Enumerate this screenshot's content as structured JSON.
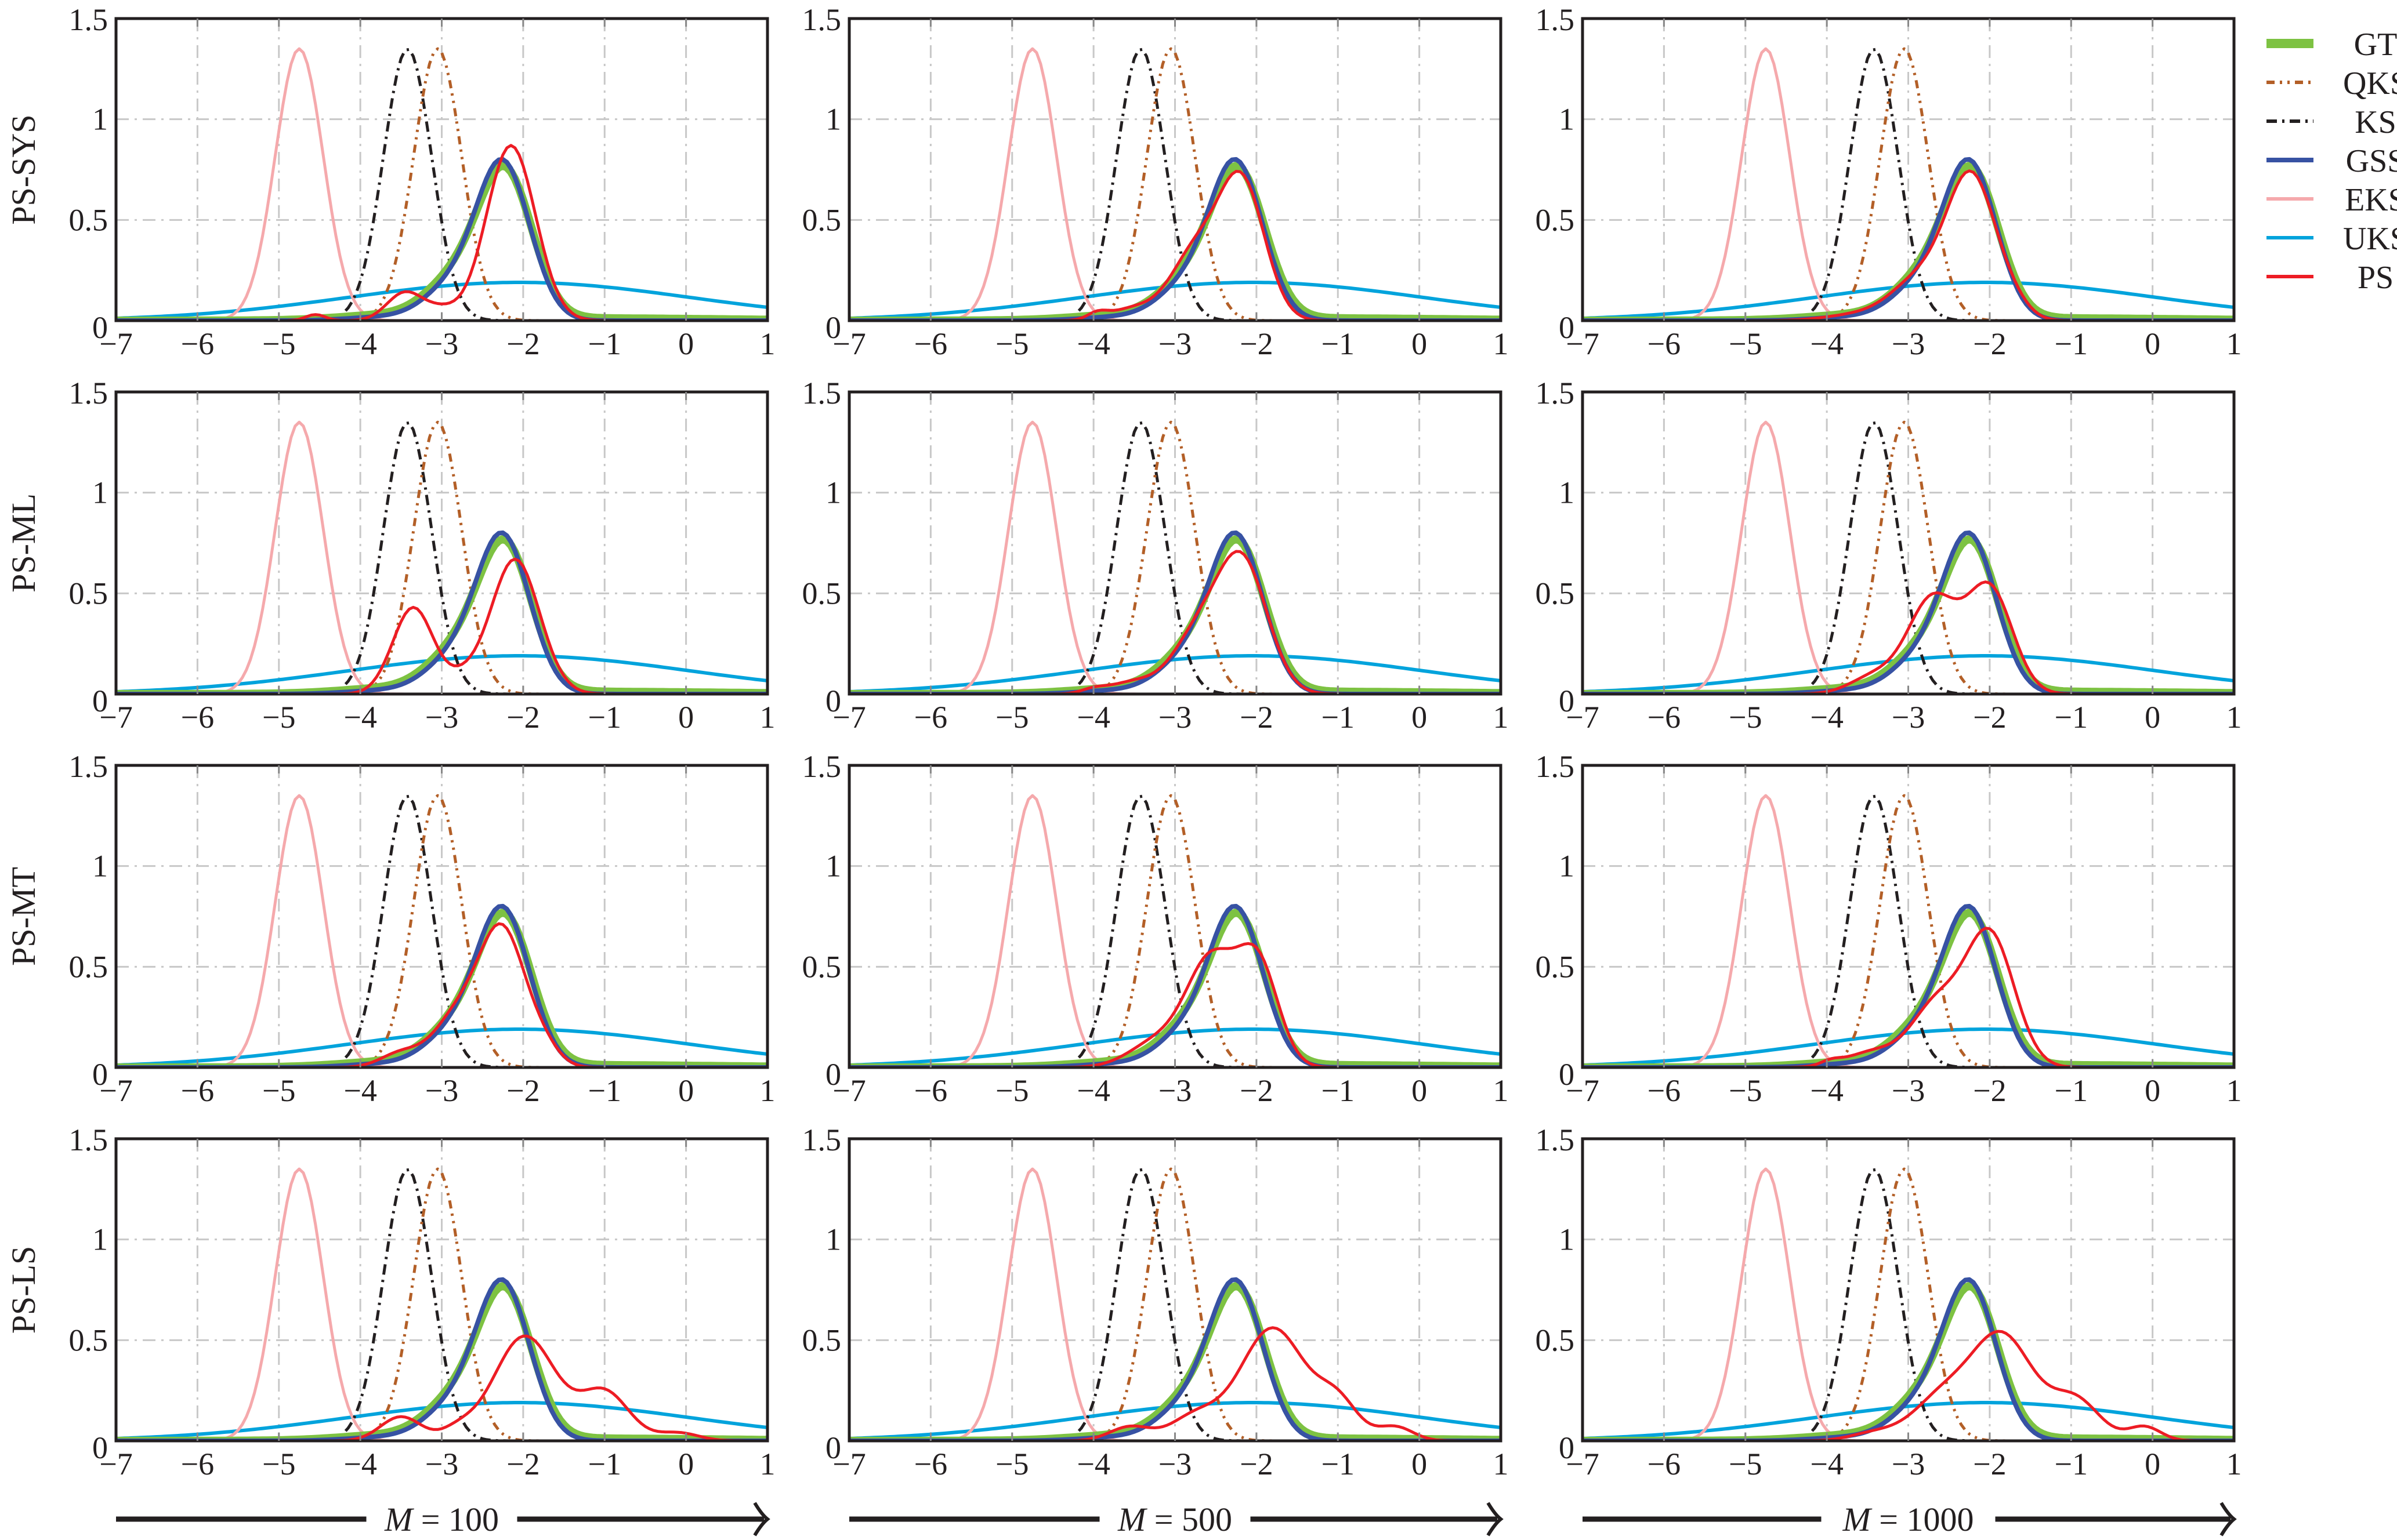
{
  "figure": {
    "row_labels": [
      "PS-SYS",
      "PS-ML",
      "PS-MT",
      "PS-LS"
    ],
    "column_labels": [
      "M = 100",
      "M = 500",
      "M = 1000"
    ],
    "column_label_parts": [
      {
        "var": "M",
        "eq": " = ",
        "val": "100"
      },
      {
        "var": "M",
        "eq": " = ",
        "val": "500"
      },
      {
        "var": "M",
        "eq": " = ",
        "val": "1000"
      }
    ],
    "x_ticks": [
      "−7",
      "−6",
      "−5",
      "−4",
      "−3",
      "−2",
      "−1",
      "0",
      "1"
    ],
    "y_ticks": [
      "0",
      "0.5",
      "1",
      "1.5"
    ]
  },
  "legend": {
    "items": [
      {
        "label": "GT",
        "color": "#7dc242",
        "style": "solid-thick"
      },
      {
        "label": "QKS",
        "color": "#b35f27",
        "style": "dash-dot-dot"
      },
      {
        "label": "KS",
        "color": "#231f20",
        "style": "dash-dot"
      },
      {
        "label": "GSS",
        "color": "#3752a3",
        "style": "solid"
      },
      {
        "label": "EKS",
        "color": "#f5a9ac",
        "style": "solid"
      },
      {
        "label": "UKS",
        "color": "#00a3dc",
        "style": "solid"
      },
      {
        "label": "PS",
        "color": "#ed1c24",
        "style": "solid"
      }
    ]
  },
  "chart_data": {
    "type": "line",
    "title": "",
    "layout": "4x3 grid of density plots; rows = PS variants, columns = particle counts M",
    "xlabel": "",
    "ylabel": "",
    "xlim": [
      -7,
      1
    ],
    "ylim": [
      0,
      1.5
    ],
    "grid": true,
    "legend_position": "right, outside top",
    "x_sample": {
      "start": -7,
      "stop": 1,
      "step": 0.05
    },
    "reference_series": [
      {
        "name": "GT",
        "color": "#7dc242",
        "peak_x": -2.25,
        "peak_y": 0.8,
        "components": [
          {
            "mu": -2.22,
            "sigma": 0.33,
            "a": 0.72
          },
          {
            "mu": -2.85,
            "sigma": 0.35,
            "a": 0.17
          },
          {
            "mu": -3.6,
            "sigma": 0.6,
            "a": 0.025
          },
          {
            "mu": -1.4,
            "sigma": 1.8,
            "a": 0.012
          }
        ]
      },
      {
        "name": "GSS",
        "color": "#3752a3",
        "peak_x": -2.27,
        "peak_y": 0.84,
        "components": [
          {
            "mu": -2.25,
            "sigma": 0.33,
            "a": 0.78
          },
          {
            "mu": -2.9,
            "sigma": 0.33,
            "a": 0.14
          },
          {
            "mu": -3.6,
            "sigma": 0.5,
            "a": 0.02
          }
        ]
      },
      {
        "name": "QKS",
        "color": "#b35f27",
        "peak_x": -3.05,
        "peak_y": 1.35,
        "components": [
          {
            "mu": -3.05,
            "sigma": 0.295,
            "a": 1.35
          }
        ]
      },
      {
        "name": "KS",
        "color": "#231f20",
        "peak_x": -3.42,
        "peak_y": 1.35,
        "components": [
          {
            "mu": -3.42,
            "sigma": 0.295,
            "a": 1.35
          }
        ]
      },
      {
        "name": "EKS",
        "color": "#f5a9ac",
        "peak_x": -4.75,
        "peak_y": 1.35,
        "components": [
          {
            "mu": -4.75,
            "sigma": 0.295,
            "a": 1.35
          }
        ]
      },
      {
        "name": "UKS",
        "color": "#00a3dc",
        "peak_x": -2.05,
        "peak_y": 0.19,
        "components": [
          {
            "mu": -2.05,
            "sigma": 2.1,
            "a": 0.19
          }
        ]
      }
    ],
    "ps_series": [
      {
        "row": "PS-SYS",
        "M": 100,
        "peak_x": -2.15,
        "peak_y": 0.88,
        "components": [
          {
            "mu": -2.15,
            "sigma": 0.3,
            "a": 0.87
          },
          {
            "mu": -3.45,
            "sigma": 0.22,
            "a": 0.14
          },
          {
            "mu": -3.0,
            "sigma": 0.2,
            "a": 0.05
          },
          {
            "mu": -4.55,
            "sigma": 0.12,
            "a": 0.03
          }
        ]
      },
      {
        "row": "PS-SYS",
        "M": 500,
        "peak_x": -2.2,
        "peak_y": 0.8,
        "components": [
          {
            "mu": -2.18,
            "sigma": 0.28,
            "a": 0.68
          },
          {
            "mu": -2.75,
            "sigma": 0.3,
            "a": 0.33
          },
          {
            "mu": -3.5,
            "sigma": 0.3,
            "a": 0.06
          },
          {
            "mu": -3.95,
            "sigma": 0.12,
            "a": 0.03
          }
        ]
      },
      {
        "row": "PS-SYS",
        "M": 1000,
        "peak_x": -2.25,
        "peak_y": 0.79,
        "components": [
          {
            "mu": -2.22,
            "sigma": 0.3,
            "a": 0.7
          },
          {
            "mu": -2.85,
            "sigma": 0.35,
            "a": 0.2
          },
          {
            "mu": -3.6,
            "sigma": 0.4,
            "a": 0.03
          },
          {
            "mu": -1.7,
            "sigma": 0.2,
            "a": 0.05
          }
        ]
      },
      {
        "row": "PS-ML",
        "M": 100,
        "peak_x": -2.1,
        "peak_y": 0.68,
        "components": [
          {
            "mu": -2.1,
            "sigma": 0.3,
            "a": 0.67
          },
          {
            "mu": -3.35,
            "sigma": 0.25,
            "a": 0.43
          },
          {
            "mu": -2.75,
            "sigma": 0.2,
            "a": 0.06
          }
        ]
      },
      {
        "row": "PS-ML",
        "M": 500,
        "peak_x": -2.2,
        "peak_y": 0.78,
        "components": [
          {
            "mu": -2.18,
            "sigma": 0.31,
            "a": 0.66
          },
          {
            "mu": -2.75,
            "sigma": 0.3,
            "a": 0.26
          },
          {
            "mu": -3.5,
            "sigma": 0.3,
            "a": 0.06
          },
          {
            "mu": -4.0,
            "sigma": 0.15,
            "a": 0.02
          }
        ]
      },
      {
        "row": "PS-ML",
        "M": 1000,
        "peak_x": -2.05,
        "peak_y": 0.66,
        "components": [
          {
            "mu": -2.0,
            "sigma": 0.28,
            "a": 0.52
          },
          {
            "mu": -2.7,
            "sigma": 0.3,
            "a": 0.47
          },
          {
            "mu": -3.4,
            "sigma": 0.3,
            "a": 0.09
          }
        ]
      },
      {
        "row": "PS-MT",
        "M": 100,
        "peak_x": -2.27,
        "peak_y": 0.77,
        "components": [
          {
            "mu": -2.25,
            "sigma": 0.28,
            "a": 0.66
          },
          {
            "mu": -2.8,
            "sigma": 0.3,
            "a": 0.25
          },
          {
            "mu": -1.75,
            "sigma": 0.2,
            "a": 0.08
          },
          {
            "mu": -3.5,
            "sigma": 0.25,
            "a": 0.07
          }
        ]
      },
      {
        "row": "PS-MT",
        "M": 500,
        "peak_x": -2.0,
        "peak_y": 0.63,
        "components": [
          {
            "mu": -1.98,
            "sigma": 0.25,
            "a": 0.5
          },
          {
            "mu": -2.55,
            "sigma": 0.3,
            "a": 0.52
          },
          {
            "mu": -3.2,
            "sigma": 0.35,
            "a": 0.13
          }
        ]
      },
      {
        "row": "PS-MT",
        "M": 1000,
        "peak_x": -2.05,
        "peak_y": 0.7,
        "components": [
          {
            "mu": -2.0,
            "sigma": 0.3,
            "a": 0.66
          },
          {
            "mu": -2.65,
            "sigma": 0.3,
            "a": 0.3
          },
          {
            "mu": -3.4,
            "sigma": 0.35,
            "a": 0.08
          },
          {
            "mu": -3.95,
            "sigma": 0.12,
            "a": 0.02
          }
        ]
      },
      {
        "row": "PS-LS",
        "M": 100,
        "peak_x": -2.0,
        "peak_y": 0.56,
        "components": [
          {
            "mu": -1.98,
            "sigma": 0.38,
            "a": 0.52
          },
          {
            "mu": -1.0,
            "sigma": 0.3,
            "a": 0.24
          },
          {
            "mu": -3.5,
            "sigma": 0.25,
            "a": 0.12
          },
          {
            "mu": -2.8,
            "sigma": 0.2,
            "a": 0.05
          },
          {
            "mu": -0.1,
            "sigma": 0.25,
            "a": 0.04
          }
        ]
      },
      {
        "row": "PS-LS",
        "M": 500,
        "peak_x": -1.82,
        "peak_y": 0.59,
        "components": [
          {
            "mu": -1.8,
            "sigma": 0.4,
            "a": 0.56
          },
          {
            "mu": -1.0,
            "sigma": 0.25,
            "a": 0.18
          },
          {
            "mu": -2.75,
            "sigma": 0.3,
            "a": 0.12
          },
          {
            "mu": -3.55,
            "sigma": 0.25,
            "a": 0.07
          },
          {
            "mu": -0.3,
            "sigma": 0.22,
            "a": 0.07
          }
        ]
      },
      {
        "row": "PS-LS",
        "M": 1000,
        "peak_x": -1.85,
        "peak_y": 0.57,
        "components": [
          {
            "mu": -1.85,
            "sigma": 0.38,
            "a": 0.52
          },
          {
            "mu": -2.6,
            "sigma": 0.35,
            "a": 0.2
          },
          {
            "mu": -0.95,
            "sigma": 0.3,
            "a": 0.2
          },
          {
            "mu": -0.1,
            "sigma": 0.2,
            "a": 0.07
          },
          {
            "mu": -3.4,
            "sigma": 0.3,
            "a": 0.04
          }
        ]
      }
    ]
  }
}
